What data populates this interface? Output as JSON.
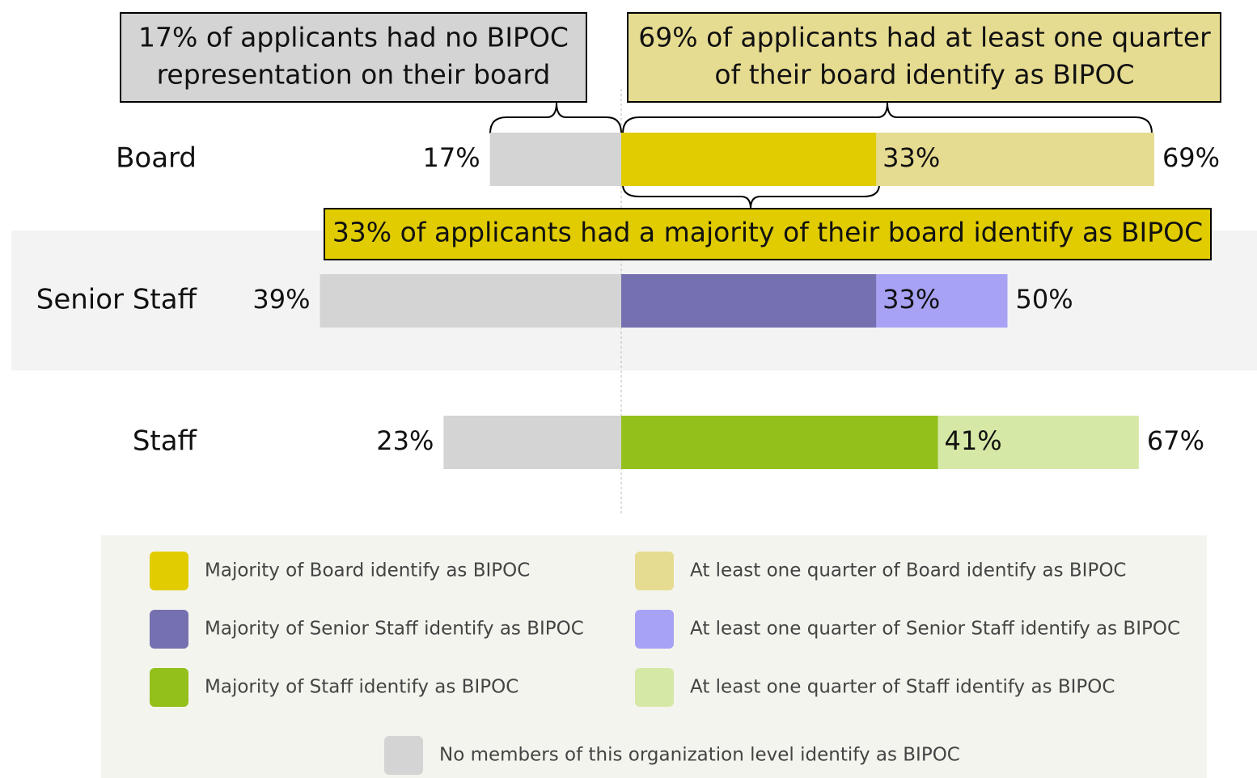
{
  "chart_data": {
    "type": "bar",
    "categories": [
      "Board",
      "Senior Staff",
      "Staff"
    ],
    "series": [
      {
        "name": "Majority of Board identify as BIPOC",
        "color": "#e0cc00",
        "values": [
          33,
          null,
          null
        ],
        "value_labels": [
          "33%",
          null,
          null
        ]
      },
      {
        "name": "At least one quarter of Board identify as BIPOC",
        "color": "#e6dc91",
        "values": [
          69,
          null,
          null
        ],
        "value_labels": [
          "69%",
          null,
          null
        ]
      },
      {
        "name": "Majority of Senior Staff identify as BIPOC",
        "color": "#7570b0",
        "values": [
          null,
          33,
          null
        ],
        "value_labels": [
          null,
          "33%",
          null
        ]
      },
      {
        "name": "At least one quarter of Senior Staff identify as BIPOC",
        "color": "#a8a2f5",
        "values": [
          null,
          50,
          null
        ],
        "value_labels": [
          null,
          "50%",
          null
        ]
      },
      {
        "name": "Majority of Staff identify as BIPOC",
        "color": "#93c01b",
        "values": [
          null,
          null,
          41
        ],
        "value_labels": [
          null,
          null,
          "41%"
        ]
      },
      {
        "name": "At least one quarter of Staff identify as BIPOC",
        "color": "#d6e8a6",
        "values": [
          null,
          null,
          67
        ],
        "value_labels": [
          null,
          null,
          "67%"
        ]
      },
      {
        "name": "No members of this organization level identify as BIPOC",
        "color": "#d4d4d4",
        "values": [
          17,
          39,
          23
        ],
        "value_labels": [
          "17%",
          "39%",
          "23%"
        ]
      }
    ],
    "annotations": [
      {
        "lines": [
          "17% of applicants had no BIPOC",
          "representation on their board"
        ]
      },
      {
        "lines": [
          "69% of applicants had at least one quarter",
          "of their board identify as BIPOC"
        ]
      },
      {
        "lines": [
          "33% of applicants had a majority of their board identify as BIPOC"
        ]
      }
    ]
  }
}
